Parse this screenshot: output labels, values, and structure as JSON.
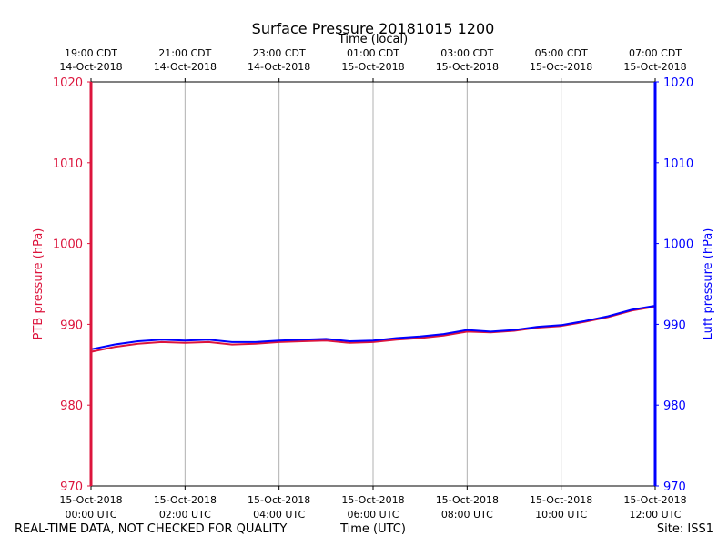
{
  "chart_data": {
    "type": "line",
    "title": "Surface Pressure 20181015 1200",
    "xlabel_top": "Time (local)",
    "xlabel_bottom": "Time (UTC)",
    "ylabel_left": "PTB pressure (hPa)",
    "ylabel_right": "Luft pressure (hPa)",
    "ylim": [
      970,
      1020
    ],
    "yticks": [
      "970",
      "980",
      "990",
      "1000",
      "1010",
      "1020"
    ],
    "xlim_hours": [
      0,
      12
    ],
    "grid": "vertical",
    "bottom_ticks": [
      {
        "h": 0,
        "date": "15-Oct-2018",
        "time": "00:00 UTC"
      },
      {
        "h": 2,
        "date": "15-Oct-2018",
        "time": "02:00 UTC"
      },
      {
        "h": 4,
        "date": "15-Oct-2018",
        "time": "04:00 UTC"
      },
      {
        "h": 6,
        "date": "15-Oct-2018",
        "time": "06:00 UTC"
      },
      {
        "h": 8,
        "date": "15-Oct-2018",
        "time": "08:00 UTC"
      },
      {
        "h": 10,
        "date": "15-Oct-2018",
        "time": "10:00 UTC"
      },
      {
        "h": 12,
        "date": "15-Oct-2018",
        "time": "12:00 UTC"
      }
    ],
    "top_ticks": [
      {
        "h": 0,
        "time": "19:00 CDT",
        "date": "14-Oct-2018"
      },
      {
        "h": 2,
        "time": "21:00 CDT",
        "date": "14-Oct-2018"
      },
      {
        "h": 4,
        "time": "23:00 CDT",
        "date": "14-Oct-2018"
      },
      {
        "h": 6,
        "time": "01:00 CDT",
        "date": "15-Oct-2018"
      },
      {
        "h": 8,
        "time": "03:00 CDT",
        "date": "15-Oct-2018"
      },
      {
        "h": 10,
        "time": "05:00 CDT",
        "date": "15-Oct-2018"
      },
      {
        "h": 12,
        "time": "07:00 CDT",
        "date": "15-Oct-2018"
      }
    ],
    "series": [
      {
        "name": "PTB pressure",
        "axis": "left",
        "color": "#dc143c",
        "x_hours": [
          0,
          0.5,
          1,
          1.5,
          2,
          2.5,
          3,
          3.5,
          4,
          4.5,
          5,
          5.5,
          6,
          6.5,
          7,
          7.5,
          8,
          8.5,
          9,
          9.5,
          10,
          10.5,
          11,
          11.5,
          12
        ],
        "values": [
          986.6,
          987.2,
          987.6,
          987.8,
          987.7,
          987.8,
          987.5,
          987.6,
          987.8,
          987.9,
          988.0,
          987.7,
          987.8,
          988.1,
          988.3,
          988.6,
          989.1,
          989.0,
          989.2,
          989.6,
          989.8,
          990.3,
          990.9,
          991.7,
          992.2
        ]
      },
      {
        "name": "Luft pressure",
        "axis": "right",
        "color": "#0000ff",
        "x_hours": [
          0,
          0.5,
          1,
          1.5,
          2,
          2.5,
          3,
          3.5,
          4,
          4.5,
          5,
          5.5,
          6,
          6.5,
          7,
          7.5,
          8,
          8.5,
          9,
          9.5,
          10,
          10.5,
          11,
          11.5,
          12
        ],
        "values": [
          986.9,
          987.5,
          987.9,
          988.1,
          988.0,
          988.1,
          987.8,
          987.8,
          988.0,
          988.1,
          988.2,
          987.9,
          988.0,
          988.3,
          988.5,
          988.8,
          989.3,
          989.1,
          989.3,
          989.7,
          989.9,
          990.4,
          991.0,
          991.8,
          992.3
        ]
      }
    ]
  },
  "footer": {
    "disclaimer": "REAL-TIME DATA, NOT CHECKED FOR QUALITY",
    "xlabel": "Time (UTC)",
    "site": "Site: ISS1"
  }
}
